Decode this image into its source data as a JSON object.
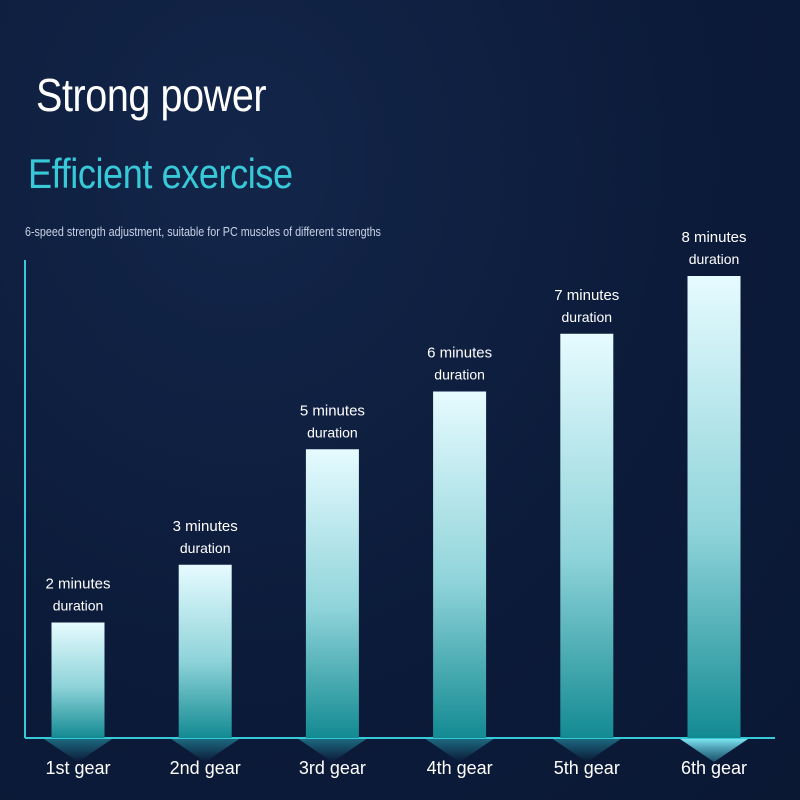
{
  "header": {
    "title": "Strong power",
    "subtitle": "Efficient exercise",
    "description": "6-speed strength adjustment, suitable for PC muscles of different strengths"
  },
  "colors": {
    "background": "#0c1b3a",
    "accent": "#38c9d8",
    "bar_top": "#e6fbff",
    "bar_bottom": "#138a92"
  },
  "chart_data": {
    "type": "bar",
    "categories": [
      "1st gear",
      "2nd gear",
      "3rd gear",
      "4th gear",
      "5th gear",
      "6th gear"
    ],
    "values": [
      2,
      3,
      5,
      6,
      7,
      8
    ],
    "data_labels": [
      [
        "2 minutes",
        "duration"
      ],
      [
        "3 minutes",
        "duration"
      ],
      [
        "5 minutes",
        "duration"
      ],
      [
        "6 minutes",
        "duration"
      ],
      [
        "7 minutes",
        "duration"
      ],
      [
        "8 minutes",
        "duration"
      ]
    ],
    "title": "",
    "xlabel": "",
    "ylabel": "",
    "ylim": [
      0,
      8.8
    ],
    "grid": false,
    "legend": "none",
    "highlighted_category": "6th gear"
  }
}
